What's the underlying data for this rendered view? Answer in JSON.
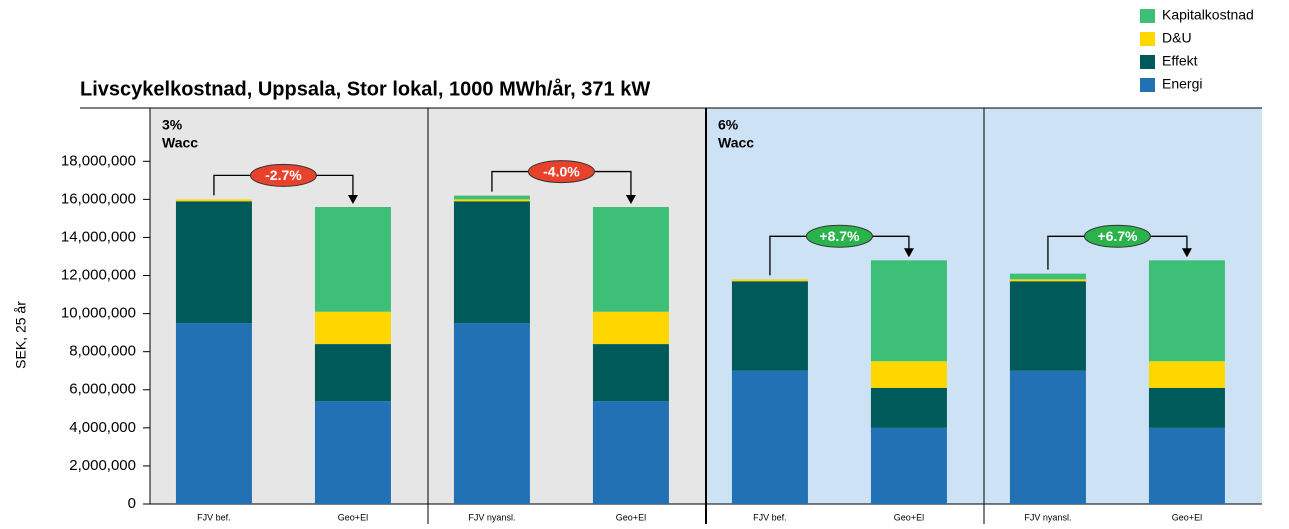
{
  "chart_data": {
    "type": "stacked-bar",
    "title": "Livscykelkostnad, Uppsala, Stor lokal, 1000 MWh/år, 371 kW",
    "y_label": "SEK, 25 år",
    "categories": [
      "FJV bef.",
      "Geo+El",
      "FJV nyansl.",
      "Geo+El",
      "FJV bef.",
      "Geo+El",
      "FJV nyansl.",
      "Geo+El"
    ],
    "series": [
      {
        "name": "Energi",
        "color": "#2271b5",
        "values": [
          9500000,
          5400000,
          9500000,
          5400000,
          7000000,
          4000000,
          7000000,
          4000000
        ]
      },
      {
        "name": "Effekt",
        "color": "#005a5a",
        "values": [
          6400000,
          3000000,
          6400000,
          3000000,
          4700000,
          2100000,
          4700000,
          2100000
        ]
      },
      {
        "name": "D&U",
        "color": "#ffd700",
        "values": [
          100000,
          1700000,
          100000,
          1700000,
          100000,
          1400000,
          100000,
          1400000
        ]
      },
      {
        "name": "Kapitalkostnad",
        "color": "#3dbf78",
        "values": [
          0,
          5500000,
          200000,
          5500000,
          0,
          5300000,
          300000,
          5300000
        ]
      }
    ],
    "panels": [
      {
        "label": [
          "3%",
          "Wacc"
        ],
        "color": "#e6e6e6"
      },
      {
        "label": [
          "6%",
          "Wacc"
        ],
        "color": "#cde3f5"
      }
    ],
    "annotations": [
      {
        "text": "-2.7%",
        "color": "#e8412c"
      },
      {
        "text": "-4.0%",
        "color": "#e8412c"
      },
      {
        "text": "+8.7%",
        "color": "#2ab34a"
      },
      {
        "text": "+6.7%",
        "color": "#2ab34a"
      }
    ],
    "ylim": [
      0,
      20800000
    ],
    "yticks": [
      0,
      {
        "value": 2000000,
        "label": "2,000,000"
      },
      {
        "value": 4000000,
        "label": "4,000,000"
      },
      {
        "value": 6000000,
        "label": "6,000,000"
      },
      {
        "value": 8000000,
        "label": "8,000,000"
      },
      {
        "value": 10000000,
        "label": "10,000,000"
      },
      {
        "value": 12000000,
        "label": "12,000,000"
      },
      {
        "value": 14000000,
        "label": "14,000,000"
      },
      {
        "value": 16000000,
        "label": "16,000,000"
      },
      {
        "value": 18000000,
        "label": "18,000,000"
      }
    ],
    "legend": "top-right"
  }
}
